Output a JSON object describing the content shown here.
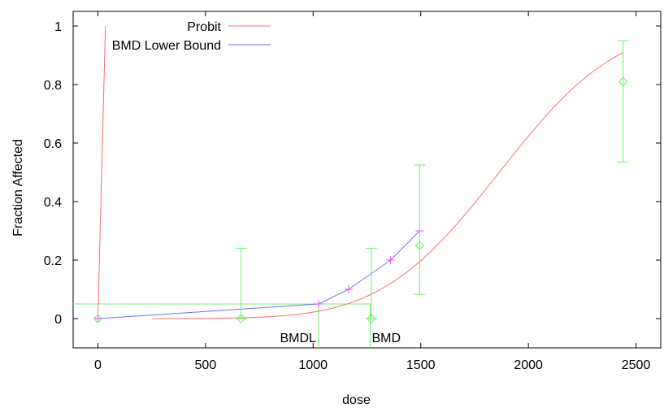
{
  "chart_data": {
    "type": "line",
    "xlabel": "dose",
    "ylabel": "Fraction Affected",
    "xlim": [
      -115,
      2615
    ],
    "ylim": [
      -0.1,
      1.05
    ],
    "x_ticks": [
      0,
      500,
      1000,
      1500,
      2000,
      2500
    ],
    "y_ticks": [
      0,
      0.2,
      0.4,
      0.6,
      0.8,
      1
    ],
    "x_tick_labels": [
      "0",
      "500",
      "1000",
      "1500",
      "2000",
      "2500"
    ],
    "y_tick_labels": [
      "0",
      "0.2",
      "0.4",
      "0.6",
      "0.8",
      "1"
    ],
    "grid": false,
    "legend_position": "top-left",
    "colors": {
      "probit": "#f07070",
      "bmdl_bound": "#7070ee",
      "observed": "#70ee70",
      "bmdl_points": "#ee50ee",
      "axis": "#000000"
    },
    "series": [
      {
        "name": "Probit",
        "kind": "line",
        "probit_model": {
          "mean": 1865,
          "sd": 430,
          "background": 0
        },
        "x_start": 250,
        "x_end": 2440
      },
      {
        "name": "BMD Lower Bound",
        "kind": "line",
        "x": [
          0,
          1025,
          1165,
          1360,
          1495
        ],
        "y": [
          0,
          0.05,
          0.1,
          0.2,
          0.3
        ]
      }
    ],
    "legend_sample_line": {
      "x": [
        0,
        35,
        35
      ],
      "y": [
        0,
        1,
        1
      ]
    },
    "observed_points": [
      {
        "x": 0,
        "y": 0,
        "lower": 0,
        "upper": 0
      },
      {
        "x": 665,
        "y": 0,
        "lower": 0,
        "upper": 0.24
      },
      {
        "x": 1270,
        "y": 0,
        "lower": 0,
        "upper": 0.24
      },
      {
        "x": 1495,
        "y": 0.25,
        "lower": 0.083,
        "upper": 0.525
      },
      {
        "x": 2440,
        "y": 0.81,
        "lower": 0.535,
        "upper": 0.95
      }
    ],
    "bmdl_markers": [
      {
        "x": 0,
        "y": 0
      },
      {
        "x": 1025,
        "y": 0.05
      },
      {
        "x": 1165,
        "y": 0.1
      },
      {
        "x": 1360,
        "y": 0.2
      },
      {
        "x": 1495,
        "y": 0.3
      }
    ],
    "bmr_level": 0.05,
    "bmdl_value": 1025,
    "bmd_value": 1265,
    "annotations": [
      {
        "text": "BMDL",
        "x": 1025
      },
      {
        "text": "BMD",
        "x": 1265
      }
    ]
  }
}
